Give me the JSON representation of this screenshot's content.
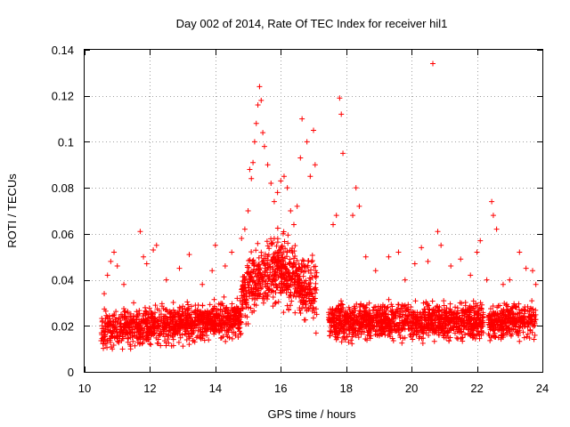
{
  "chart_data": {
    "type": "scatter",
    "title": "Day 002 of 2014, Rate Of TEC Index for receiver hil1",
    "xlabel": "GPS time / hours",
    "ylabel": "ROTI / TECUs",
    "xlim": [
      10,
      24
    ],
    "ylim": [
      0,
      0.14
    ],
    "xticks": [
      "10",
      "12",
      "14",
      "16",
      "18",
      "20",
      "22",
      "24"
    ],
    "yticks": [
      "0",
      "0.02",
      "0.04",
      "0.06",
      "0.08",
      "0.1",
      "0.12",
      "0.14"
    ],
    "grid": true,
    "marker": "+",
    "color": "#ff0000",
    "series": [
      {
        "name": "ROTI",
        "points": [
          [
            10.6,
            0.034
          ],
          [
            10.7,
            0.042
          ],
          [
            10.8,
            0.048
          ],
          [
            10.9,
            0.052
          ],
          [
            11.0,
            0.046
          ],
          [
            11.2,
            0.038
          ],
          [
            11.5,
            0.03
          ],
          [
            11.7,
            0.061
          ],
          [
            11.8,
            0.05
          ],
          [
            11.9,
            0.047
          ],
          [
            12.1,
            0.053
          ],
          [
            12.2,
            0.055
          ],
          [
            12.5,
            0.04
          ],
          [
            12.9,
            0.045
          ],
          [
            13.2,
            0.051
          ],
          [
            13.6,
            0.038
          ],
          [
            13.9,
            0.044
          ],
          [
            14.0,
            0.055
          ],
          [
            14.3,
            0.046
          ],
          [
            14.5,
            0.052
          ],
          [
            14.8,
            0.058
          ],
          [
            14.9,
            0.062
          ],
          [
            15.0,
            0.07
          ],
          [
            15.05,
            0.088
          ],
          [
            15.1,
            0.084
          ],
          [
            15.15,
            0.091
          ],
          [
            15.2,
            0.1
          ],
          [
            15.25,
            0.108
          ],
          [
            15.3,
            0.116
          ],
          [
            15.35,
            0.124
          ],
          [
            15.4,
            0.118
          ],
          [
            15.45,
            0.104
          ],
          [
            15.5,
            0.098
          ],
          [
            15.6,
            0.09
          ],
          [
            15.7,
            0.082
          ],
          [
            15.8,
            0.074
          ],
          [
            15.9,
            0.078
          ],
          [
            16.0,
            0.083
          ],
          [
            16.1,
            0.085
          ],
          [
            16.2,
            0.08
          ],
          [
            16.3,
            0.07
          ],
          [
            16.4,
            0.064
          ],
          [
            16.5,
            0.072
          ],
          [
            16.6,
            0.093
          ],
          [
            16.65,
            0.11
          ],
          [
            16.8,
            0.1
          ],
          [
            16.9,
            0.085
          ],
          [
            17.0,
            0.105
          ],
          [
            17.05,
            0.09
          ],
          [
            17.6,
            0.064
          ],
          [
            17.7,
            0.068
          ],
          [
            17.8,
            0.119
          ],
          [
            17.85,
            0.112
          ],
          [
            17.9,
            0.095
          ],
          [
            18.2,
            0.068
          ],
          [
            18.3,
            0.08
          ],
          [
            18.4,
            0.072
          ],
          [
            18.6,
            0.05
          ],
          [
            18.9,
            0.044
          ],
          [
            19.3,
            0.05
          ],
          [
            19.6,
            0.052
          ],
          [
            19.8,
            0.04
          ],
          [
            20.1,
            0.047
          ],
          [
            20.3,
            0.054
          ],
          [
            20.5,
            0.048
          ],
          [
            20.65,
            0.134
          ],
          [
            20.8,
            0.061
          ],
          [
            20.9,
            0.055
          ],
          [
            21.2,
            0.046
          ],
          [
            21.5,
            0.049
          ],
          [
            21.8,
            0.042
          ],
          [
            22.0,
            0.052
          ],
          [
            22.1,
            0.057
          ],
          [
            22.3,
            0.04
          ],
          [
            22.45,
            0.074
          ],
          [
            22.5,
            0.068
          ],
          [
            22.6,
            0.062
          ],
          [
            22.8,
            0.038
          ],
          [
            23.0,
            0.04
          ],
          [
            23.3,
            0.052
          ],
          [
            23.5,
            0.045
          ],
          [
            23.7,
            0.044
          ],
          [
            23.8,
            0.038
          ]
        ]
      }
    ]
  }
}
